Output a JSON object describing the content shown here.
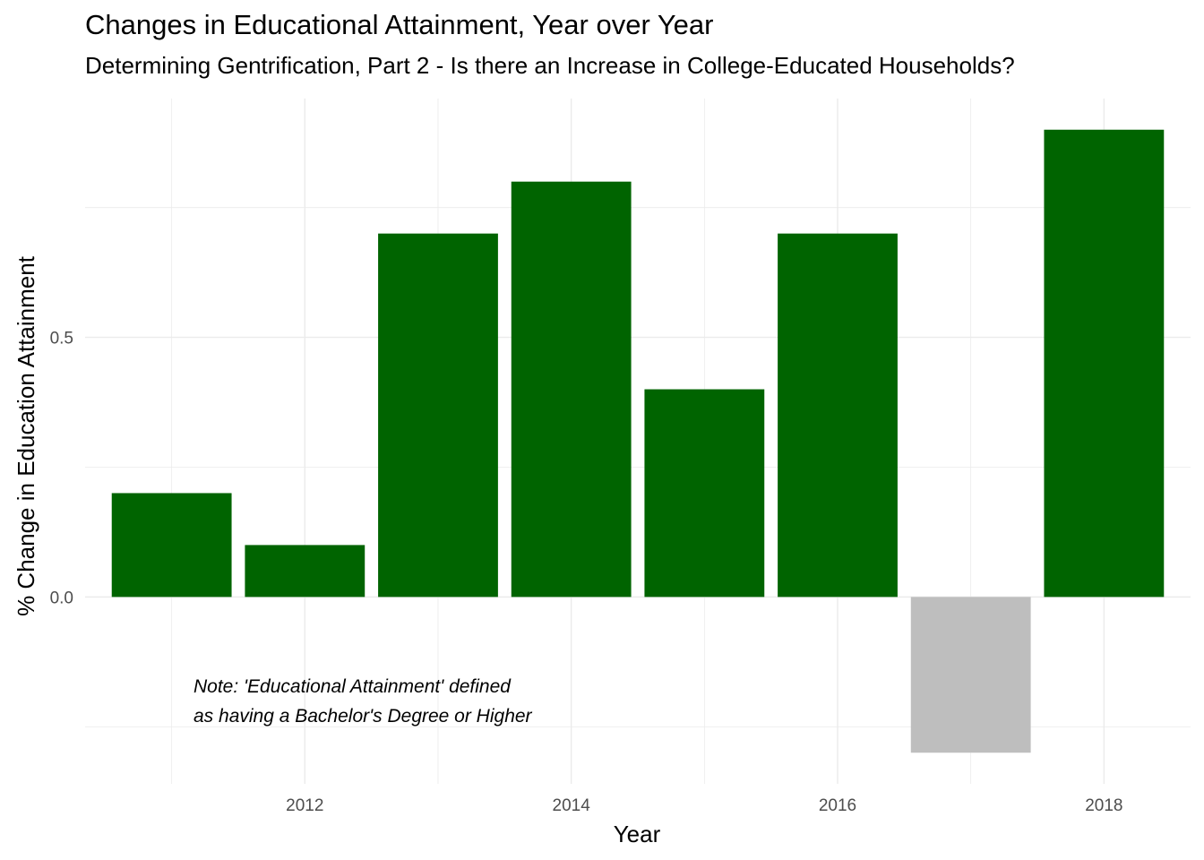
{
  "chart_data": {
    "type": "bar",
    "title": "Changes in Educational Attainment, Year over Year",
    "subtitle": "Determining Gentrification, Part 2 - Is there an Increase in College-Educated Households?",
    "xlabel": "Year",
    "ylabel": "% Change in Education Attainment",
    "x": [
      2011,
      2012,
      2013,
      2014,
      2015,
      2016,
      2017,
      2018
    ],
    "values": [
      0.2,
      0.1,
      0.7,
      0.8,
      0.4,
      0.7,
      -0.3,
      0.9
    ],
    "xticks": [
      2012,
      2014,
      2016,
      2018
    ],
    "yticks": [
      0.0,
      0.5
    ],
    "ytick_labels": [
      "0.0",
      "0.5"
    ],
    "xlim": [
      2010.35,
      2018.65
    ],
    "ylim": [
      -0.36,
      0.96
    ],
    "grid": true,
    "legend": "none",
    "colors": {
      "positive": "#006400",
      "negative": "#bebebe",
      "grid": "#ebebeb"
    },
    "annotations": [
      "Note: 'Educational Attainment' defined",
      "as having a Bachelor's Degree or Higher"
    ]
  }
}
